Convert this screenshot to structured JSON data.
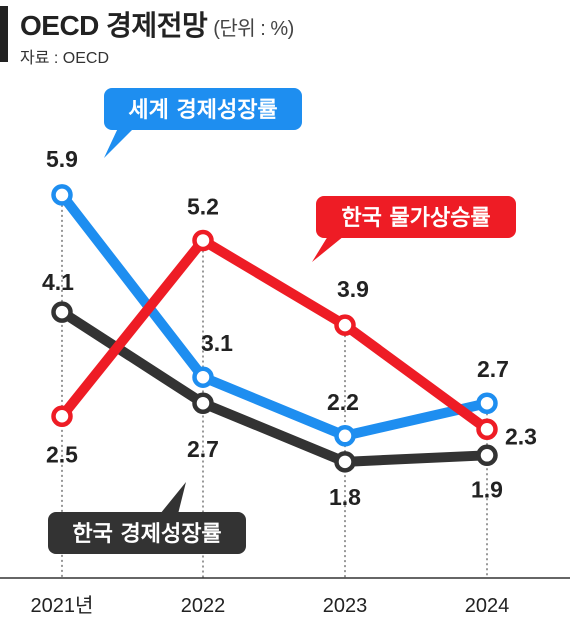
{
  "header": {
    "title": "OECD 경제전망",
    "unit": "(단위 : %)",
    "source": "자료 : OECD"
  },
  "chart_data": {
    "type": "line",
    "categories": [
      "2021년",
      "2022",
      "2023",
      "2024"
    ],
    "series": [
      {
        "name": "세계 경제성장률",
        "color": "#1e8ef0",
        "values": [
          5.9,
          3.1,
          2.2,
          2.7
        ]
      },
      {
        "name": "한국 물가상승률",
        "color": "#ee1c25",
        "values": [
          2.5,
          5.2,
          3.9,
          2.3
        ]
      },
      {
        "name": "한국 경제성장률",
        "color": "#333333",
        "values": [
          4.1,
          2.7,
          1.8,
          1.9
        ]
      }
    ],
    "value_labels": [
      [
        "5.9",
        "3.1",
        "2.2",
        "2.7"
      ],
      [
        "2.5",
        "5.2",
        "3.9",
        "2.3"
      ],
      [
        "4.1",
        "2.7",
        "1.8",
        "1.9"
      ]
    ],
    "grid": "vertical-dashed",
    "legend": "callout-labels"
  }
}
